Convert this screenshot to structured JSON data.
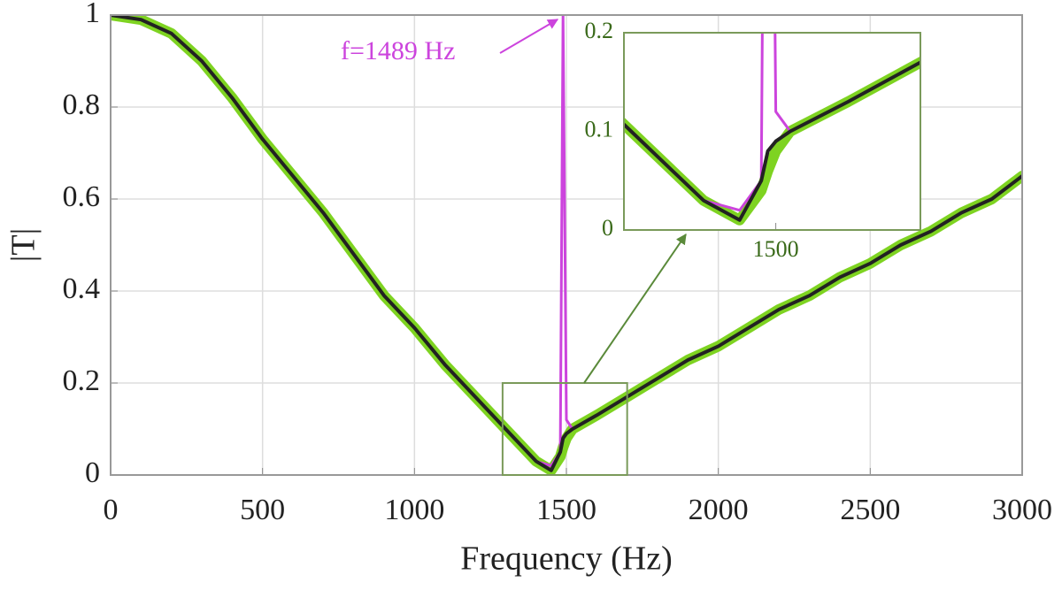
{
  "chart_data": [
    {
      "type": "line",
      "xlabel": "Frequency (Hz)",
      "ylabel": "|T|",
      "x": [
        0,
        100,
        200,
        300,
        400,
        500,
        600,
        700,
        800,
        900,
        1000,
        1100,
        1200,
        1300,
        1400,
        1450,
        1480,
        1489,
        1500,
        1520,
        1600,
        1700,
        1800,
        1900,
        2000,
        2100,
        2200,
        2300,
        2400,
        2500,
        2600,
        2700,
        2800,
        2900,
        3000
      ],
      "series": [
        {
          "color": "#7ed321",
          "width": 12,
          "values": [
            1,
            0.99,
            0.96,
            0.9,
            0.82,
            0.73,
            0.65,
            0.57,
            0.48,
            0.39,
            0.32,
            0.24,
            0.17,
            0.1,
            0.03,
            0.01,
            0.04,
            0.06,
            0.08,
            0.1,
            0.13,
            0.17,
            0.21,
            0.25,
            0.28,
            0.32,
            0.36,
            0.39,
            0.43,
            0.46,
            0.5,
            0.53,
            0.57,
            0.6,
            0.65
          ]
        },
        {
          "color": "#cc44dd",
          "width": 3,
          "values": [
            1,
            0.99,
            0.96,
            0.9,
            0.82,
            0.73,
            0.65,
            0.57,
            0.48,
            0.39,
            0.32,
            0.24,
            0.17,
            0.1,
            0.03,
            0.02,
            0.05,
            1,
            0.12,
            0.1,
            0.13,
            0.17,
            0.21,
            0.25,
            0.28,
            0.32,
            0.36,
            0.39,
            0.43,
            0.46,
            0.5,
            0.53,
            0.57,
            0.6,
            0.65
          ]
        },
        {
          "color": "#222222",
          "width": 4,
          "values": [
            1,
            0.99,
            0.96,
            0.9,
            0.82,
            0.73,
            0.65,
            0.57,
            0.48,
            0.39,
            0.32,
            0.24,
            0.17,
            0.1,
            0.03,
            0.01,
            0.05,
            0.08,
            0.09,
            0.1,
            0.13,
            0.17,
            0.21,
            0.25,
            0.28,
            0.32,
            0.36,
            0.39,
            0.43,
            0.46,
            0.5,
            0.53,
            0.57,
            0.6,
            0.65
          ]
        }
      ],
      "xlim": [
        0,
        3000
      ],
      "xticks": [
        0,
        500,
        1000,
        1500,
        2000,
        2500,
        3000
      ],
      "ylim": [
        0,
        1
      ],
      "yticks": [
        0,
        0.2,
        0.4,
        0.6,
        0.8,
        1
      ],
      "grid": true,
      "annotation": "f=1489 Hz"
    },
    {
      "type": "inset",
      "xlim": [
        1290,
        1700
      ],
      "xticks": [
        1500
      ],
      "ylim": [
        0,
        0.2
      ],
      "yticks": [
        0,
        0.1,
        0.2
      ],
      "grid": false
    }
  ]
}
